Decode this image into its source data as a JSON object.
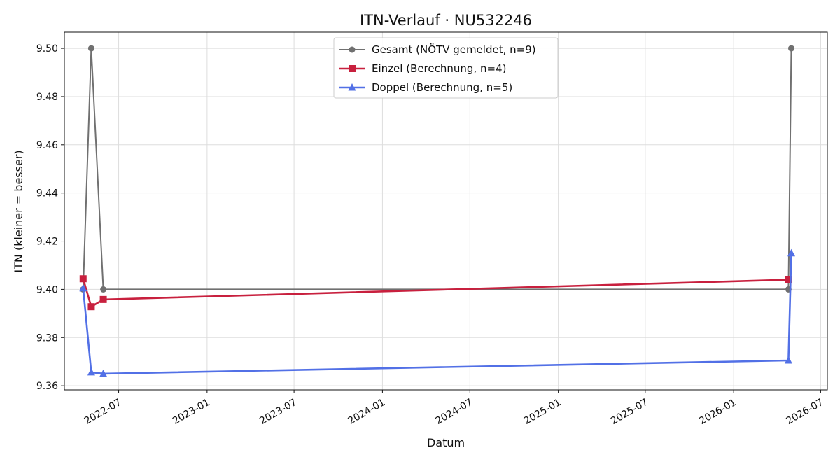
{
  "chart_data": {
    "type": "line",
    "title": "ITN-Verlauf · NU532246",
    "xlabel": "Datum",
    "ylabel": "ITN  (kleiner = besser)",
    "x_axis": "date",
    "xlim": [
      "2022-03-10",
      "2026-07-15"
    ],
    "ylim": [
      9.3583,
      9.5067
    ],
    "x_ticks": [
      "2022-07",
      "2023-01",
      "2023-07",
      "2024-01",
      "2024-07",
      "2025-01",
      "2025-07",
      "2026-01",
      "2026-07"
    ],
    "y_ticks": [
      9.36,
      9.38,
      9.4,
      9.42,
      9.44,
      9.46,
      9.48,
      9.5
    ],
    "y_tick_labels": [
      "9.36",
      "9.38",
      "9.40",
      "9.42",
      "9.44",
      "9.46",
      "9.48",
      "9.50"
    ],
    "grid": true,
    "legend_position": "top-center",
    "series": [
      {
        "name": "Gesamt (NÖTV gemeldet, n=9)",
        "color": "#707070",
        "marker": "circle",
        "points": [
          {
            "x": "2022-04-18",
            "y": 9.4
          },
          {
            "x": "2022-05-05",
            "y": 9.5
          },
          {
            "x": "2022-05-30",
            "y": 9.4
          },
          {
            "x": "2026-04-25",
            "y": 9.4
          },
          {
            "x": "2026-05-01",
            "y": 9.5
          }
        ]
      },
      {
        "name": "Einzel (Berechnung, n=4)",
        "color": "#c8203e",
        "marker": "square",
        "points": [
          {
            "x": "2022-04-18",
            "y": 9.4044
          },
          {
            "x": "2022-05-05",
            "y": 9.3928
          },
          {
            "x": "2022-05-30",
            "y": 9.3958
          },
          {
            "x": "2026-04-25",
            "y": 9.404
          }
        ]
      },
      {
        "name": "Doppel (Berechnung, n=5)",
        "color": "#5270e6",
        "marker": "triangle",
        "points": [
          {
            "x": "2022-04-18",
            "y": 9.4005
          },
          {
            "x": "2022-05-05",
            "y": 9.3656
          },
          {
            "x": "2022-05-30",
            "y": 9.365
          },
          {
            "x": "2026-04-25",
            "y": 9.3705
          },
          {
            "x": "2026-05-01",
            "y": 9.415
          }
        ]
      }
    ]
  }
}
